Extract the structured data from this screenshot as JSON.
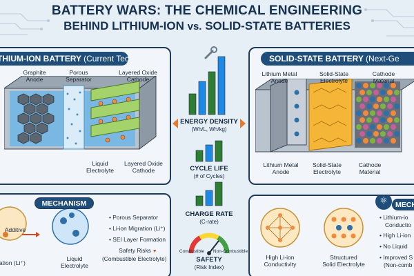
{
  "title": {
    "line1": "BATTERY WARS: THE CHEMICAL ENGINEERING",
    "line2_a": "BEHIND LITHIUM-ION",
    "line2_vs": "vs.",
    "line2_b": "SOLID-STATE BATTERIES"
  },
  "left_panel": {
    "title": "THIUM-ION BATTERY",
    "subtitle": "(Current Tech)",
    "labels": {
      "graphite": "Graphite\nAnode",
      "separator": "Porous\nSeparator",
      "cathode_top": "Layered Oxide\nCathode",
      "electrolyte": "Liquid\nElectrolyte",
      "cathode_bottom": "Layered Oxide\nCathode"
    },
    "mechanism": {
      "title": "MECHANISM",
      "additive": "Additive",
      "li_left": "ration (Li⁺)",
      "electrolyte": "Liquid\nElectrolyte",
      "bullets": [
        "Porous Separator",
        "Li-ion Migration (Li⁺)",
        "SEI Layer Formation",
        "Safety Risks",
        "(Combustible Electrolyte)"
      ]
    }
  },
  "center": {
    "metrics": [
      {
        "name": "ENERGY DENSITY",
        "unit": "(Wh/L, Wh/kg)"
      },
      {
        "name": "CYCLE LIFE",
        "unit": "(# of Cycles)"
      },
      {
        "name": "CHARGE RATE",
        "unit": "(C-rate)"
      },
      {
        "name": "SAFETY",
        "unit": "(Risk Index)"
      }
    ],
    "gauge": {
      "left": "Combustible",
      "right": "Non-Combustible"
    },
    "colors": {
      "lithium_ion": "#2e7d32",
      "solid_state": "#1e88e5"
    }
  },
  "right_panel": {
    "title": "SOLID-STATE BATTERY",
    "subtitle": "(Next-Ge",
    "labels": {
      "anode_top": "Lithium Metal\nAnode",
      "electrolyte_top": "Solid-State\nElectrolyte",
      "cathode_top": "Cathode\nMaterial",
      "anode_bottom": "Lithium Metal\nAnode",
      "electrolyte_bottom": "Solid-State\nElectrolyte",
      "cathode_bottom": "Cathode\nMaterial"
    },
    "mechanism": {
      "title": "MECH",
      "conductivity": "High Li-ion\nConductivity",
      "structured": "Structured\nSolid Electrolyte",
      "bullets": [
        "Lithium-io",
        "Conductio",
        "High Li-ion",
        "No Liquid",
        "Improved S",
        "(Non-comb"
      ]
    }
  }
}
